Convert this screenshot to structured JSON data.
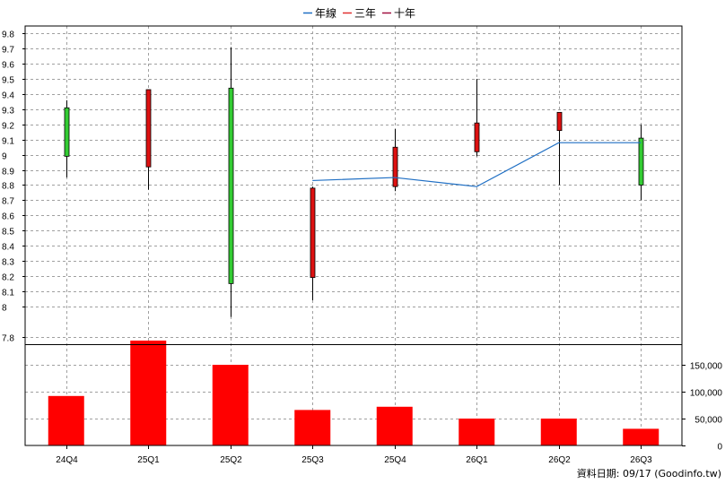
{
  "chart_data": {
    "type": "candlestick+bar",
    "legend": [
      {
        "label": "年線",
        "color": "#1f6fc4"
      },
      {
        "label": "三年",
        "color": "#e03030"
      },
      {
        "label": "十年",
        "color": "#a01040"
      }
    ],
    "categories": [
      "24Q4",
      "25Q1",
      "25Q2",
      "25Q3",
      "25Q4",
      "26Q1",
      "26Q2",
      "26Q3"
    ],
    "price_axis": {
      "ylim": [
        7.75,
        9.85
      ],
      "ticks": [
        7.8,
        8,
        8.1,
        8.2,
        8.3,
        8.4,
        8.5,
        8.6,
        8.7,
        8.8,
        8.9,
        9,
        9.1,
        9.2,
        9.3,
        9.4,
        9.5,
        9.6,
        9.7,
        9.8
      ],
      "tick_labels": [
        "7.8",
        "8",
        "8.1",
        "8.2",
        "8.3",
        "8.4",
        "8.5",
        "8.6",
        "8.7",
        "8.8",
        "8.9",
        "9",
        "9.1",
        "9.2",
        "9.3",
        "9.4",
        "9.5",
        "9.6",
        "9.7",
        "9.8"
      ]
    },
    "candles": [
      {
        "open": 8.99,
        "high": 9.36,
        "low": 8.85,
        "close": 9.31,
        "up": true
      },
      {
        "open": 9.43,
        "high": 9.43,
        "low": 8.77,
        "close": 8.92,
        "up": false
      },
      {
        "open": 8.15,
        "high": 9.71,
        "low": 7.93,
        "close": 9.44,
        "up": true
      },
      {
        "open": 8.78,
        "high": 8.79,
        "low": 8.04,
        "close": 8.19,
        "up": false
      },
      {
        "open": 9.05,
        "high": 9.17,
        "low": 8.76,
        "close": 8.79,
        "up": false
      },
      {
        "open": 9.21,
        "high": 9.5,
        "low": 8.99,
        "close": 9.02,
        "up": false
      },
      {
        "open": 9.28,
        "high": 9.28,
        "low": 8.8,
        "close": 9.16,
        "up": false
      },
      {
        "open": 8.8,
        "high": 9.2,
        "low": 8.7,
        "close": 9.11,
        "up": true
      }
    ],
    "annual_line": {
      "name": "年線",
      "start_index": 3,
      "values": [
        8.83,
        8.85,
        8.79,
        9.08,
        9.08
      ]
    },
    "volume_axis": {
      "ylim": [
        0,
        195000
      ],
      "ticks": [
        0,
        50000,
        100000,
        150000
      ],
      "tick_labels": [
        "0",
        "50,000",
        "100,000",
        "150,000"
      ]
    },
    "volumes": [
      92000,
      198000,
      150000,
      66000,
      72000,
      50000,
      50000,
      31000
    ],
    "colors": {
      "up": "#33cc33",
      "down": "#dd1111",
      "volume": "#ff0000",
      "grid": "#a0a0a0",
      "annual_line": "#1f6fc4"
    }
  },
  "footer": {
    "text": "資料日期: 09/17  (Goodinfo.tw)"
  }
}
